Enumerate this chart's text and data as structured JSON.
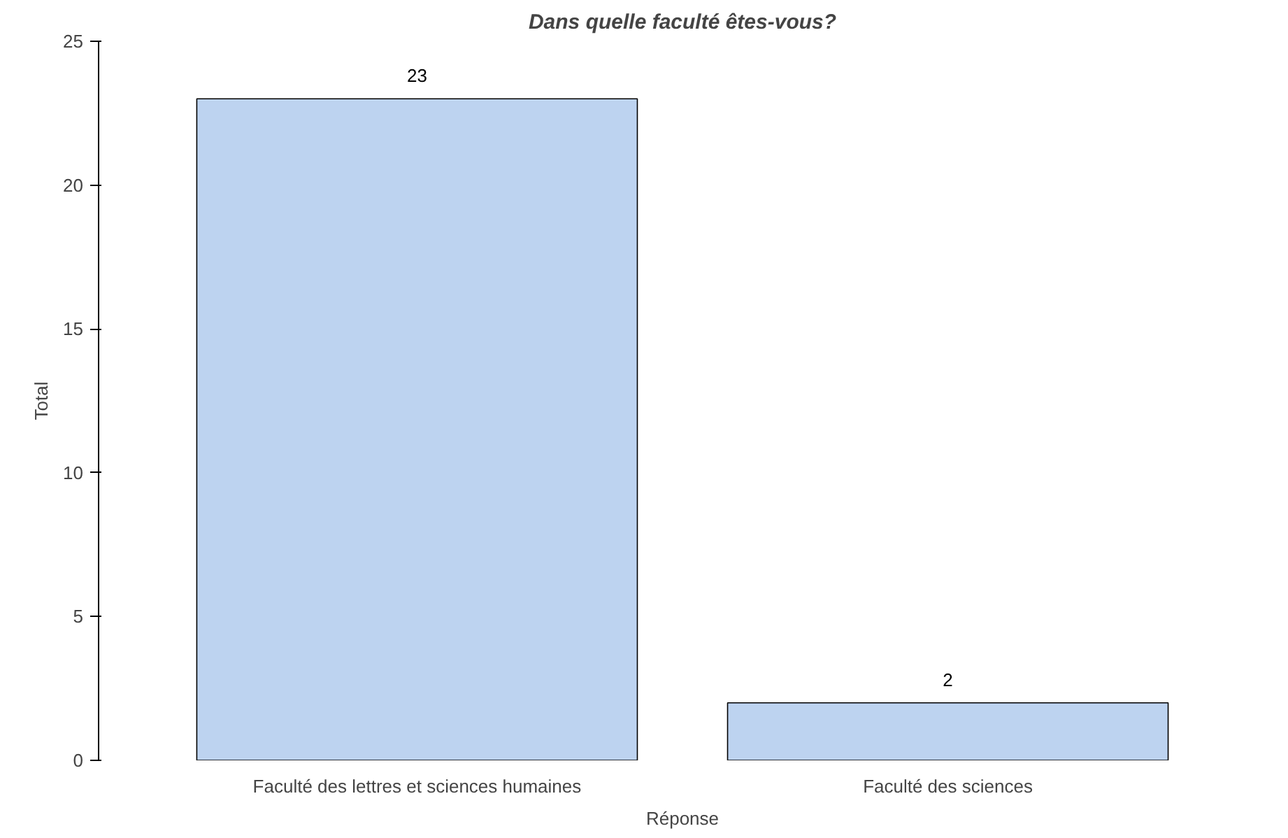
{
  "chart_data": {
    "type": "bar",
    "title": "Dans quelle faculté êtes-vous?",
    "xlabel": "Réponse",
    "ylabel": "Total",
    "categories": [
      "Faculté des lettres et sciences humaines",
      "Faculté des sciences"
    ],
    "values": [
      23,
      2
    ],
    "color": "#bdd3f0",
    "ylim": [
      0,
      25
    ],
    "yticks": [
      0,
      5,
      10,
      15,
      20,
      25
    ],
    "data_labels": true,
    "grid": false
  }
}
